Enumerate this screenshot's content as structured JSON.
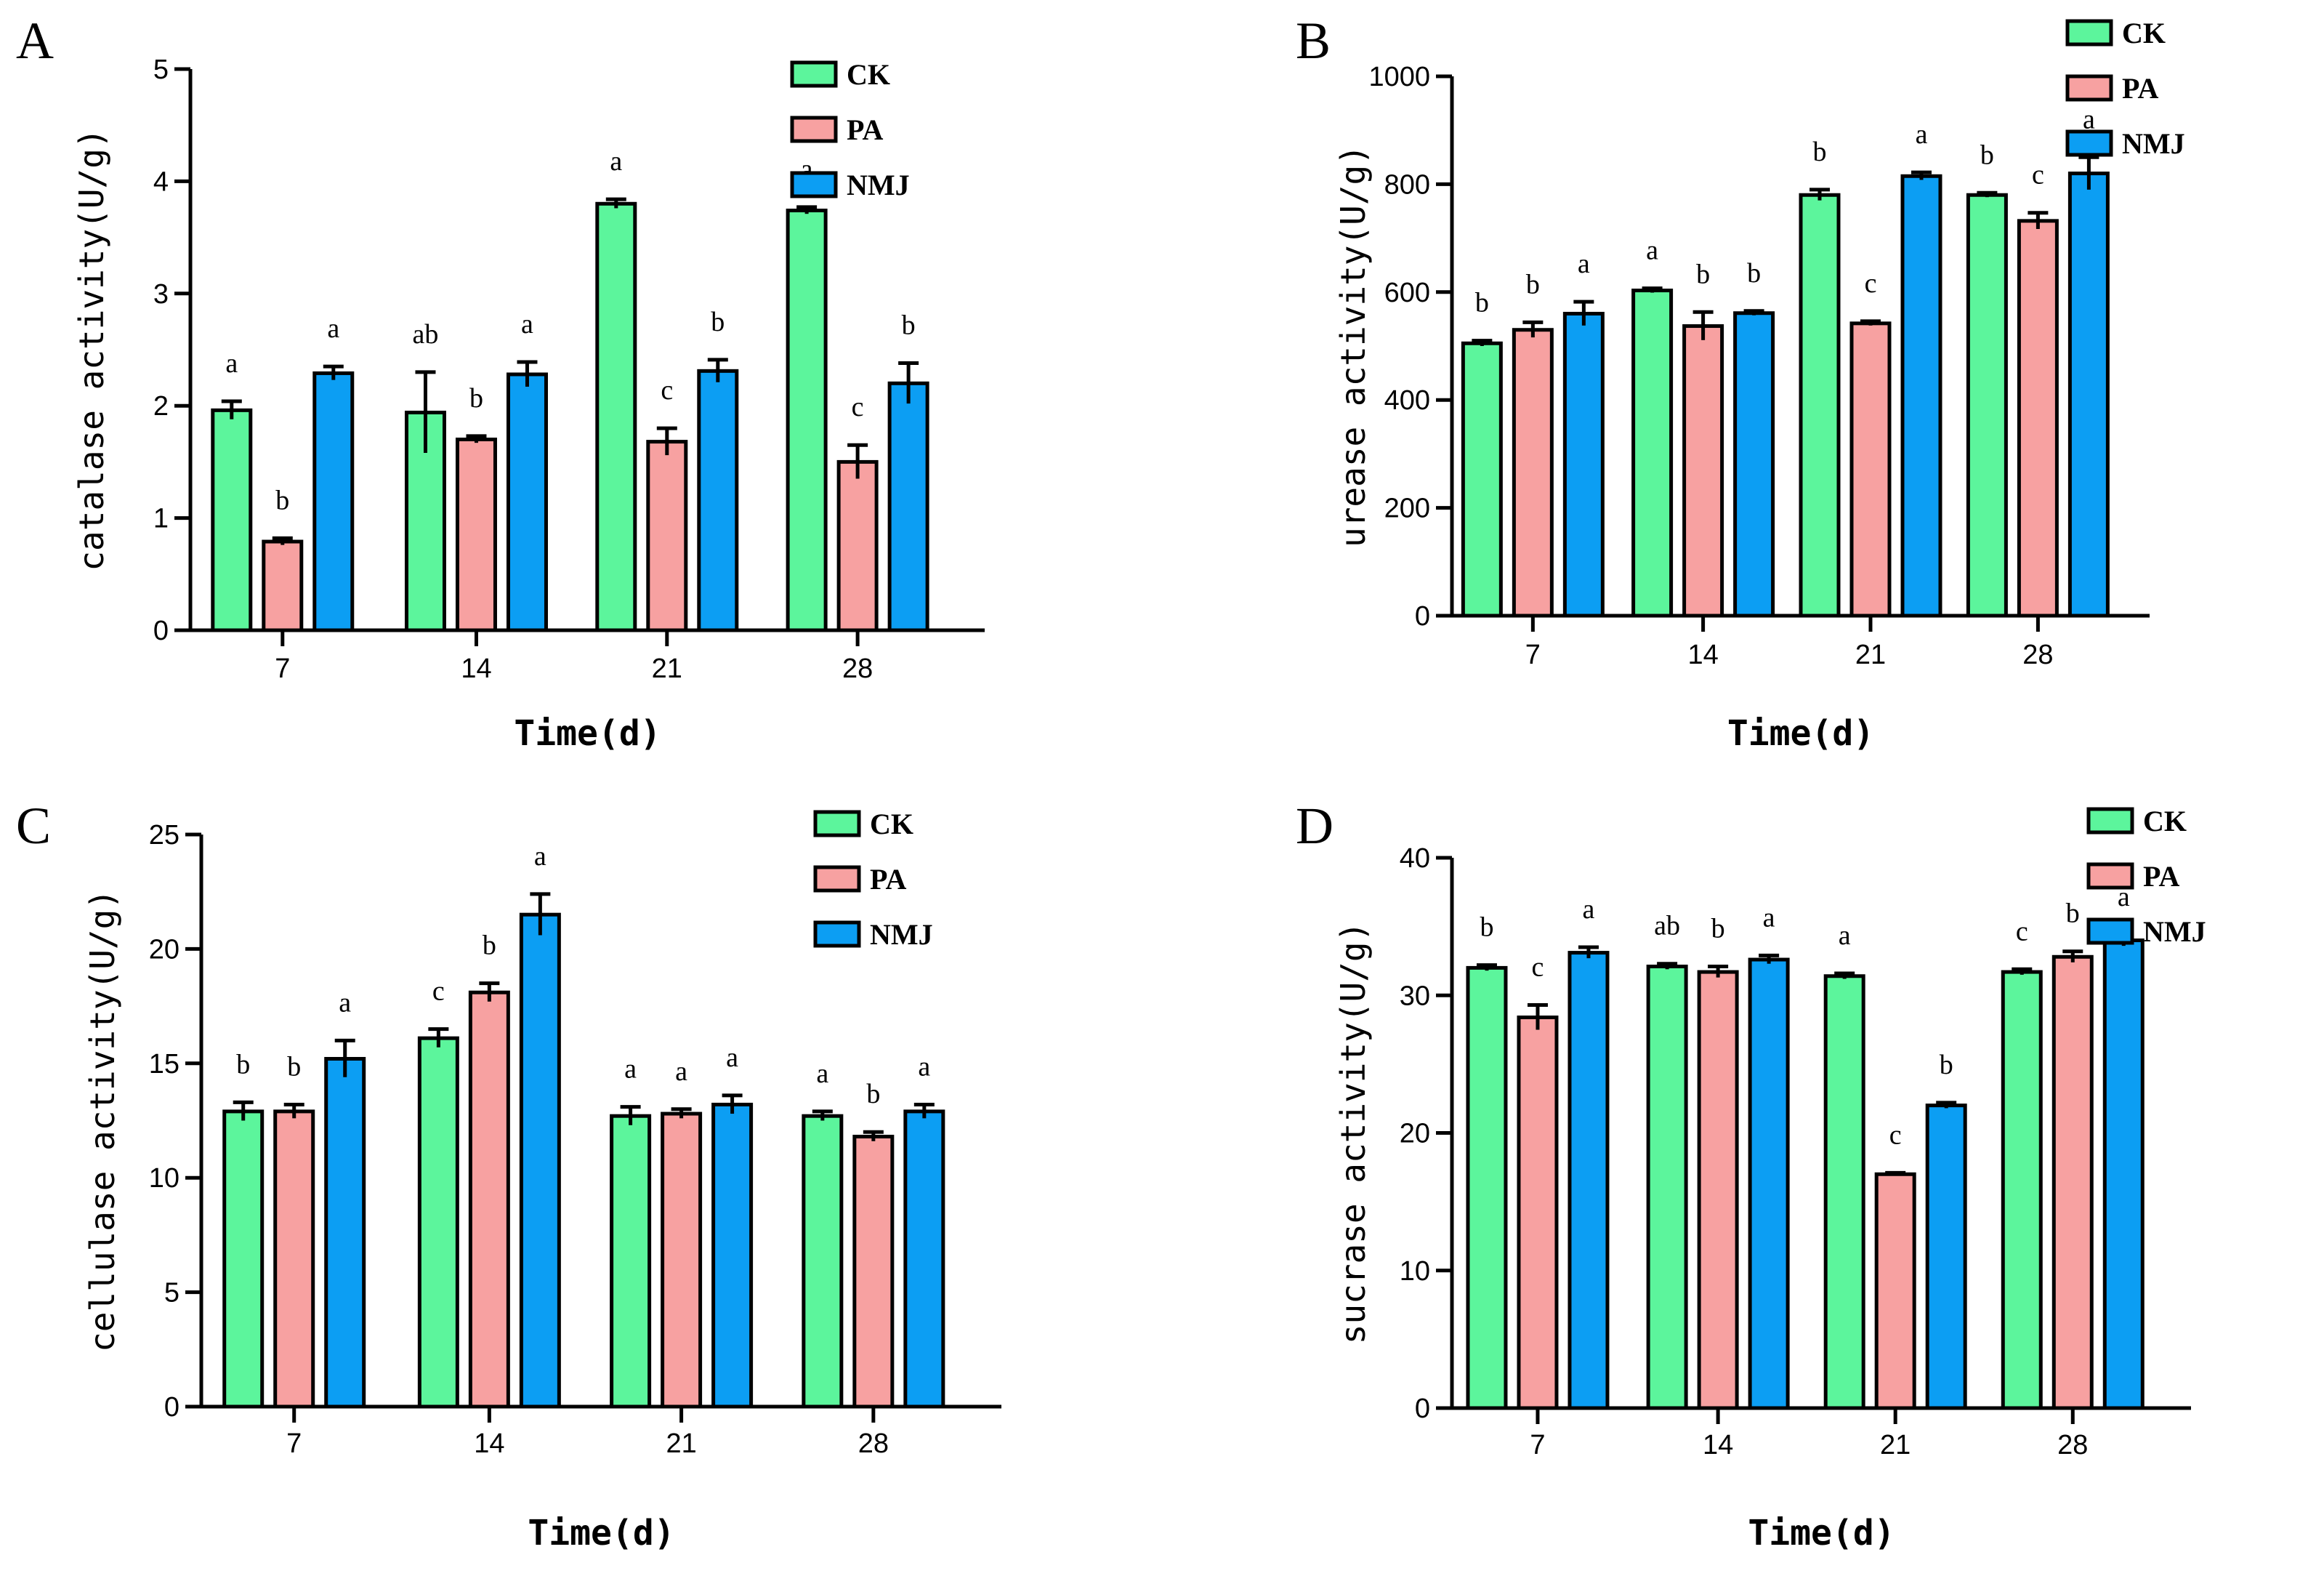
{
  "figure": {
    "font": "serif"
  },
  "legend": {
    "entries": [
      {
        "name": "CK",
        "color": "#5cf59c"
      },
      {
        "name": "PA",
        "color": "#f7a1a1"
      },
      {
        "name": "NMJ",
        "color": "#0c9ef3"
      }
    ]
  },
  "chart_data": [
    {
      "panel": "A",
      "type": "bar",
      "title": "",
      "xlabel": "Time(d)",
      "ylabel": "catalase activity(U/g)",
      "categories": [
        "7",
        "14",
        "21",
        "28"
      ],
      "ylim": [
        0,
        5
      ],
      "yticks": [
        0,
        1,
        2,
        3,
        4,
        5
      ],
      "legend_position": "top-right",
      "series": [
        {
          "name": "CK",
          "values": [
            1.96,
            1.94,
            3.8,
            3.74
          ],
          "errors": [
            0.08,
            0.36,
            0.04,
            0.03
          ],
          "letters": [
            "a",
            "ab",
            "a",
            "a"
          ]
        },
        {
          "name": "PA",
          "values": [
            0.79,
            1.7,
            1.68,
            1.5
          ],
          "errors": [
            0.03,
            0.03,
            0.12,
            0.15
          ],
          "letters": [
            "b",
            "b",
            "c",
            "c"
          ]
        },
        {
          "name": "NMJ",
          "values": [
            2.29,
            2.28,
            2.31,
            2.2
          ],
          "errors": [
            0.06,
            0.11,
            0.1,
            0.18
          ],
          "letters": [
            "a",
            "a",
            "b",
            "b"
          ]
        }
      ]
    },
    {
      "panel": "B",
      "type": "bar",
      "title": "",
      "xlabel": "Time(d)",
      "ylabel": "urease activity(U/g)",
      "categories": [
        "7",
        "14",
        "21",
        "28"
      ],
      "ylim": [
        0,
        1000
      ],
      "yticks": [
        0,
        200,
        400,
        600,
        800,
        1000
      ],
      "legend_position": "top-right",
      "series": [
        {
          "name": "CK",
          "values": [
            505,
            603,
            780,
            780
          ],
          "errors": [
            5,
            4,
            10,
            4
          ],
          "letters": [
            "b",
            "a",
            "b",
            "b"
          ]
        },
        {
          "name": "PA",
          "values": [
            530,
            537,
            542,
            732
          ],
          "errors": [
            14,
            26,
            4,
            15
          ],
          "letters": [
            "b",
            "b",
            "c",
            "c"
          ]
        },
        {
          "name": "NMJ",
          "values": [
            560,
            561,
            815,
            820
          ],
          "errors": [
            22,
            4,
            7,
            30
          ],
          "letters": [
            "a",
            "b",
            "a",
            "a"
          ]
        }
      ]
    },
    {
      "panel": "C",
      "type": "bar",
      "title": "",
      "xlabel": "Time(d)",
      "ylabel": "cellulase activity(U/g)",
      "categories": [
        "7",
        "14",
        "21",
        "28"
      ],
      "ylim": [
        0,
        25
      ],
      "yticks": [
        0,
        5,
        10,
        15,
        20,
        25
      ],
      "legend_position": "top-right",
      "series": [
        {
          "name": "CK",
          "values": [
            12.9,
            16.1,
            12.7,
            12.7
          ],
          "errors": [
            0.4,
            0.4,
            0.4,
            0.2
          ],
          "letters": [
            "b",
            "c",
            "a",
            "a"
          ]
        },
        {
          "name": "PA",
          "values": [
            12.9,
            18.1,
            12.8,
            11.8
          ],
          "errors": [
            0.3,
            0.4,
            0.2,
            0.2
          ],
          "letters": [
            "b",
            "b",
            "a",
            "b"
          ]
        },
        {
          "name": "NMJ",
          "values": [
            15.2,
            21.5,
            13.2,
            12.9
          ],
          "errors": [
            0.8,
            0.9,
            0.4,
            0.3
          ],
          "letters": [
            "a",
            "a",
            "a",
            "a"
          ]
        }
      ]
    },
    {
      "panel": "D",
      "type": "bar",
      "title": "",
      "xlabel": "Time(d)",
      "ylabel": "sucrase activity(U/g)",
      "categories": [
        "7",
        "14",
        "21",
        "28"
      ],
      "ylim": [
        0,
        40
      ],
      "yticks": [
        0,
        10,
        20,
        30,
        40
      ],
      "legend_position": "top-right",
      "series": [
        {
          "name": "CK",
          "values": [
            32.0,
            32.1,
            31.4,
            31.7
          ],
          "errors": [
            0.2,
            0.2,
            0.2,
            0.2
          ],
          "letters": [
            "b",
            "ab",
            "a",
            "c"
          ]
        },
        {
          "name": "PA",
          "values": [
            28.4,
            31.7,
            17.0,
            32.8
          ],
          "errors": [
            0.9,
            0.4,
            0.1,
            0.4
          ],
          "letters": [
            "c",
            "b",
            "c",
            "b"
          ]
        },
        {
          "name": "NMJ",
          "values": [
            33.1,
            32.6,
            22.0,
            34.0
          ],
          "errors": [
            0.4,
            0.3,
            0.2,
            0.4
          ],
          "letters": [
            "a",
            "a",
            "b",
            "a"
          ]
        }
      ]
    }
  ]
}
